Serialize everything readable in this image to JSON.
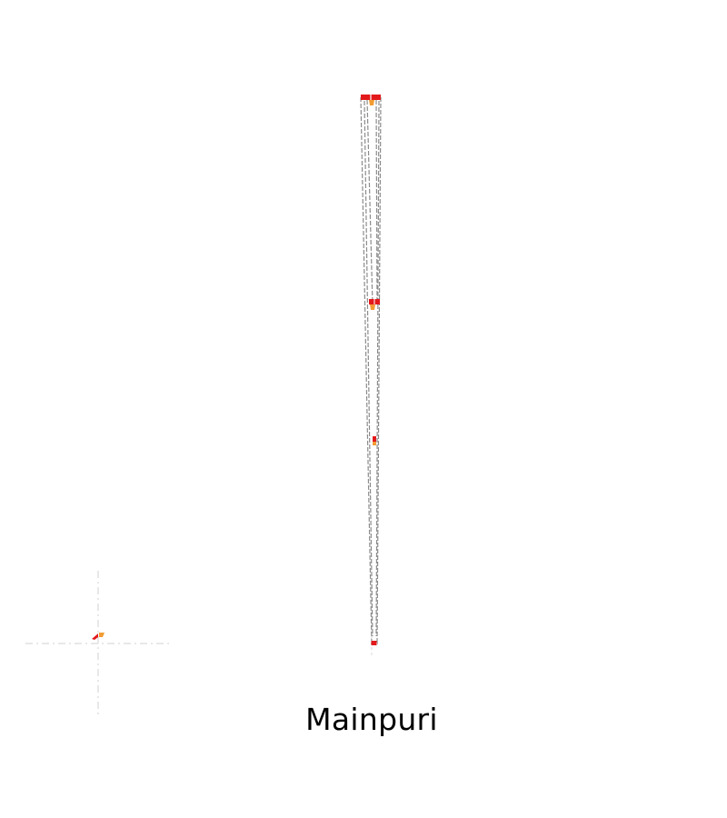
{
  "title": "Mainpuri",
  "colors": {
    "background": "#ffffff",
    "frame_outline": "#8c8c8c",
    "axis_guides": "#d9d9d9",
    "marker_red": "#e31a1c",
    "marker_orange": "#f39c33",
    "text": "#000000"
  }
}
